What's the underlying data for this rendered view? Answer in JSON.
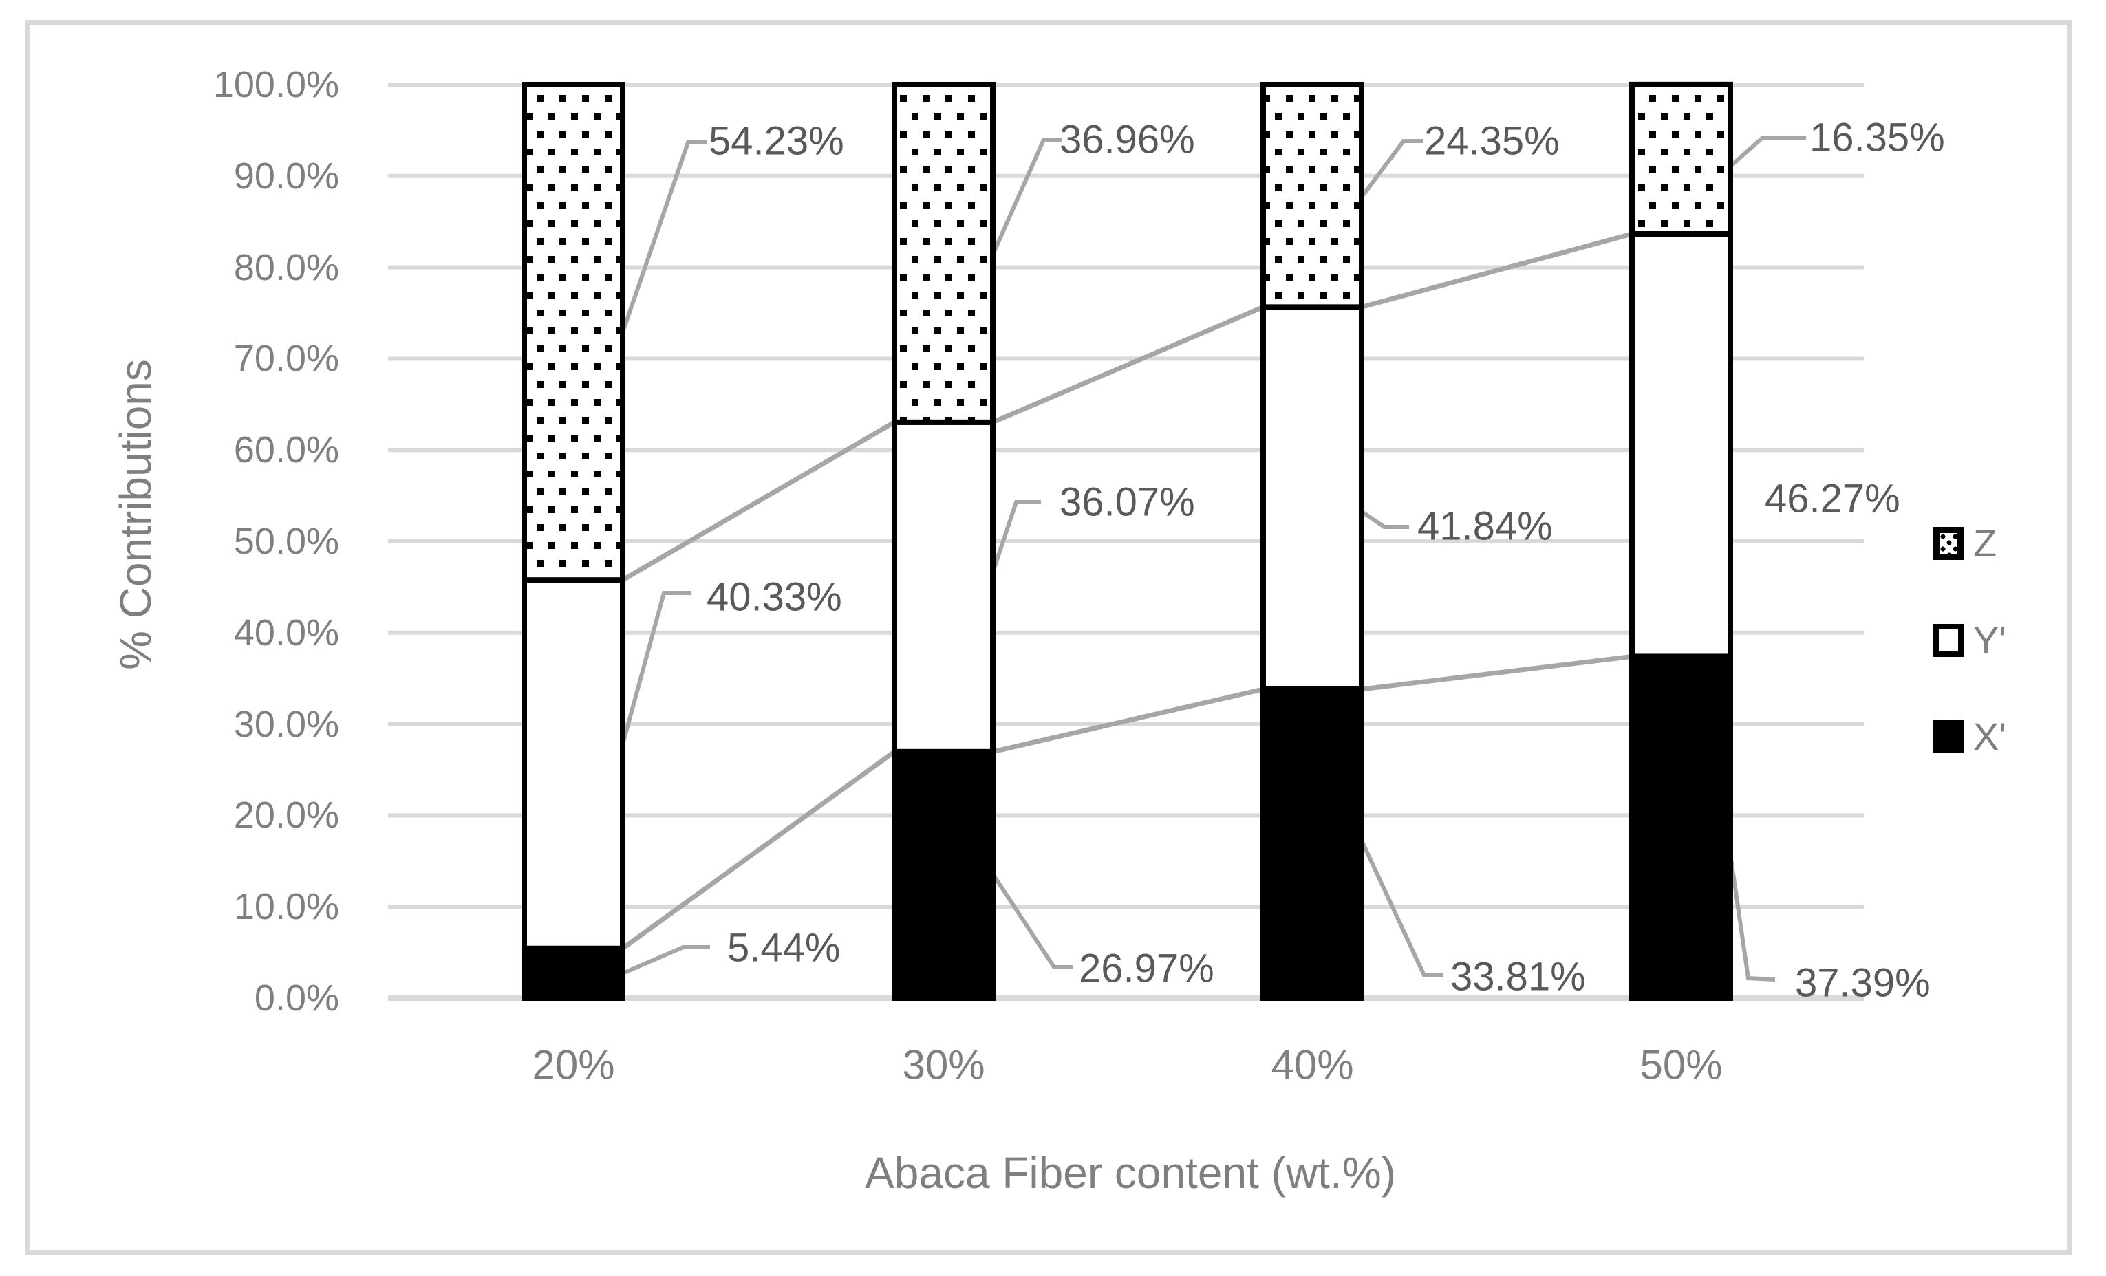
{
  "chart_data": {
    "type": "bar",
    "stacked": true,
    "orientation": "vertical",
    "xlabel": "Abaca Fiber content (wt.%)",
    "ylabel": "% Contributions",
    "categories": [
      "20%",
      "30%",
      "40%",
      "50%"
    ],
    "series": [
      {
        "name": "X'",
        "fill": "black",
        "values": [
          5.44,
          26.97,
          33.81,
          37.39
        ],
        "labels": [
          "5.44%",
          "26.97%",
          "33.81%",
          "37.39%"
        ]
      },
      {
        "name": "Y'",
        "fill": "white",
        "values": [
          40.33,
          36.07,
          41.84,
          46.27
        ],
        "labels": [
          "40.33%",
          "36.07%",
          "41.84%",
          "46.27%"
        ]
      },
      {
        "name": "Z",
        "fill": "dotted",
        "values": [
          54.23,
          36.96,
          24.35,
          16.35
        ],
        "labels": [
          "54.23%",
          "36.96%",
          "24.35%",
          "16.35%"
        ]
      }
    ],
    "ylim": [
      0,
      100
    ],
    "y_ticks": [
      "100.0%",
      "90.0%",
      "80.0%",
      "70.0%",
      "60.0%",
      "50.0%",
      "40.0%",
      "30.0%",
      "20.0%",
      "10.0%",
      "0.0%"
    ],
    "grid": true,
    "series_lines": true,
    "legend_position": "right"
  },
  "legend": {
    "items": [
      {
        "label": "Z",
        "swatch": "dotted"
      },
      {
        "label": "Y'",
        "swatch": "white"
      },
      {
        "label": "X'",
        "swatch": "black"
      }
    ]
  },
  "colors": {
    "axis_text": "#7f7f7f",
    "data_label_text": "#595959",
    "gridline": "#d9d9d9",
    "connector_line": "#a6a6a6",
    "bar_border": "#000000",
    "frame_border": "#d9d9d9",
    "background": "#ffffff"
  }
}
